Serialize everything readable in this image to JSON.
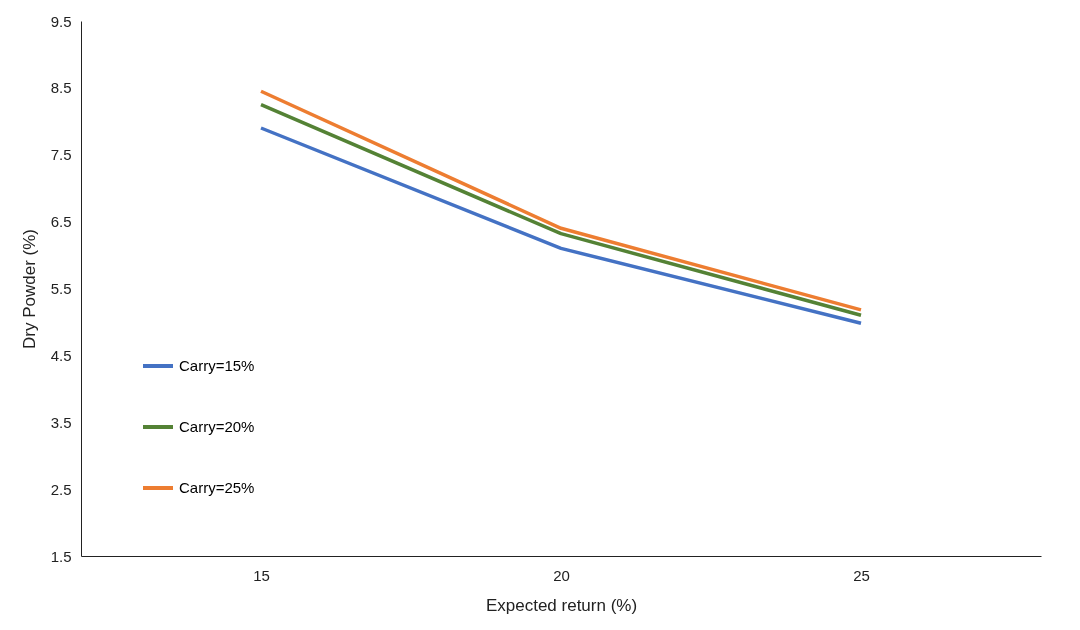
{
  "chart_data": {
    "type": "line",
    "xlabel": "Expected return (%)",
    "ylabel": "Dry Powder (%)",
    "categories": [
      "15",
      "20",
      "25"
    ],
    "series": [
      {
        "name": "Carry=15%",
        "color": "#4472c4",
        "values": [
          7.9,
          6.1,
          4.98
        ]
      },
      {
        "name": "Carry=20%",
        "color": "#548235",
        "values": [
          8.25,
          6.32,
          5.1
        ]
      },
      {
        "name": "Carry=25%",
        "color": "#ed7d31",
        "values": [
          8.45,
          6.4,
          5.18
        ]
      }
    ],
    "ylim": [
      1.5,
      9.5
    ],
    "yticks": [
      1.5,
      2.5,
      3.5,
      4.5,
      5.5,
      6.5,
      7.5,
      8.5,
      9.5
    ],
    "grid": false,
    "legend": "bottom left",
    "marker": "none",
    "line_style": "solid"
  }
}
